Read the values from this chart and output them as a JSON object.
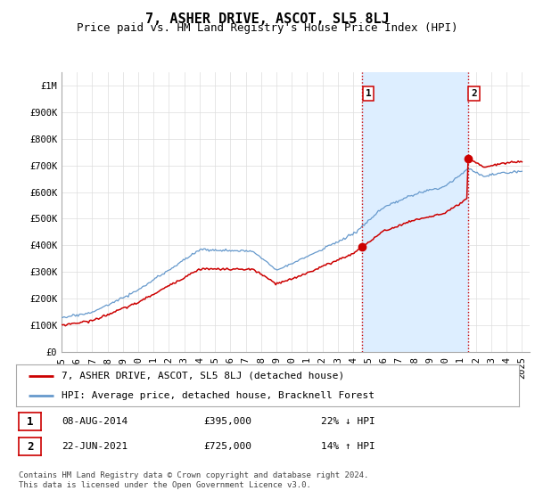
{
  "title": "7, ASHER DRIVE, ASCOT, SL5 8LJ",
  "subtitle": "Price paid vs. HM Land Registry's House Price Index (HPI)",
  "ylabel_ticks": [
    "£0",
    "£100K",
    "£200K",
    "£300K",
    "£400K",
    "£500K",
    "£600K",
    "£700K",
    "£800K",
    "£900K",
    "£1M"
  ],
  "ytick_values": [
    0,
    100000,
    200000,
    300000,
    400000,
    500000,
    600000,
    700000,
    800000,
    900000,
    1000000
  ],
  "ylim": [
    0,
    1050000
  ],
  "xlim_start": 1995.0,
  "xlim_end": 2025.5,
  "sale1_date": 2014.6,
  "sale1_price": 395000,
  "sale1_label": "1",
  "sale2_date": 2021.47,
  "sale2_price": 725000,
  "sale2_label": "2",
  "vline_color": "#cc0000",
  "vline_style": ":",
  "shade_color": "#ddeeff",
  "marker_color": "#cc0000",
  "hpi_line_color": "#6699cc",
  "price_line_color": "#cc0000",
  "legend_label_price": "7, ASHER DRIVE, ASCOT, SL5 8LJ (detached house)",
  "legend_label_hpi": "HPI: Average price, detached house, Bracknell Forest",
  "table_row1": [
    "1",
    "08-AUG-2014",
    "£395,000",
    "22% ↓ HPI"
  ],
  "table_row2": [
    "2",
    "22-JUN-2021",
    "£725,000",
    "14% ↑ HPI"
  ],
  "footnote": "Contains HM Land Registry data © Crown copyright and database right 2024.\nThis data is licensed under the Open Government Licence v3.0.",
  "bg_color": "#ffffff",
  "grid_color": "#dddddd",
  "title_fontsize": 11,
  "subtitle_fontsize": 9,
  "tick_fontsize": 7.5
}
